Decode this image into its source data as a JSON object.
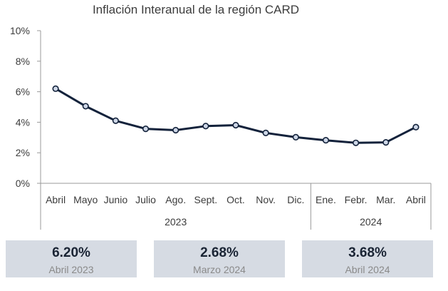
{
  "chart_data": {
    "type": "line",
    "title": "Inflación Interanual de la región CARD",
    "categories": [
      "Abril",
      "Mayo",
      "Junio",
      "Julio",
      "Ago.",
      "Sept.",
      "Oct.",
      "Nov.",
      "Dic.",
      "Ene.",
      "Febr.",
      "Mar.",
      "Abril"
    ],
    "groups": [
      {
        "label": "2023",
        "count": 9
      },
      {
        "label": "2024",
        "count": 4
      }
    ],
    "series": [
      {
        "values": [
          6.2,
          5.05,
          4.1,
          3.57,
          3.48,
          3.75,
          3.81,
          3.3,
          3.02,
          2.82,
          2.65,
          2.68,
          3.68
        ]
      }
    ],
    "ylim": [
      0,
      10
    ],
    "yticks": [
      "0%",
      "2%",
      "4%",
      "6%",
      "8%",
      "10%"
    ],
    "line_color": "#13223b",
    "marker_fill": "#cdd6e6",
    "grid": false
  },
  "cards": [
    {
      "value": "6.20%",
      "label": "Abril 2023"
    },
    {
      "value": "2.68%",
      "label": "Marzo 2024"
    },
    {
      "value": "3.68%",
      "label": "Abril 2024"
    }
  ]
}
